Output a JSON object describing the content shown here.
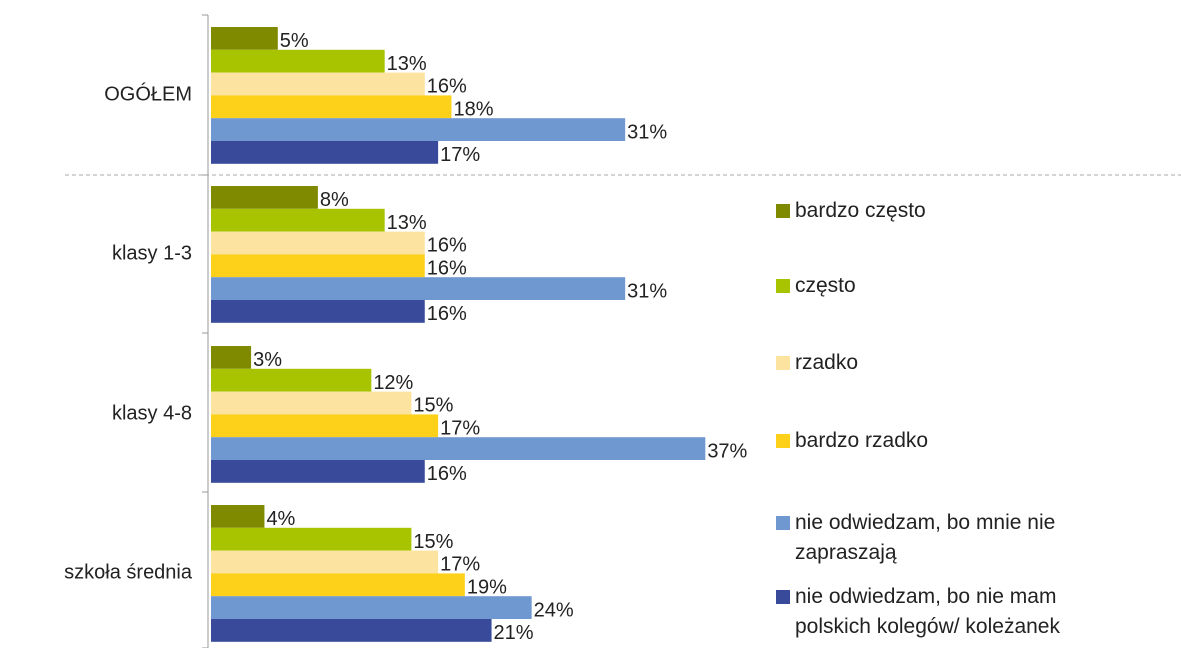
{
  "chart_data": {
    "type": "bar",
    "orientation": "horizontal",
    "categories": [
      "OGÓŁEM",
      "klasy 1-3",
      "klasy 4-8",
      "szkoła średnia"
    ],
    "series": [
      {
        "name": "bardzo często",
        "color": "#7f8a00",
        "values": [
          5,
          8,
          3,
          4
        ],
        "value_labels": [
          "5%",
          "8%",
          "3%",
          "4%"
        ]
      },
      {
        "name": "często",
        "color": "#a8c400",
        "values": [
          13,
          13,
          12,
          15
        ],
        "value_labels": [
          "13%",
          "13%",
          "12%",
          "15%"
        ]
      },
      {
        "name": "rzadko",
        "color": "#fde3a0",
        "values": [
          16,
          16,
          15,
          17
        ],
        "value_labels": [
          "16%",
          "16%",
          "15%",
          "17%"
        ]
      },
      {
        "name": "bardzo rzadko",
        "color": "#fdd01a",
        "values": [
          18,
          16,
          17,
          19
        ],
        "value_labels": [
          "18%",
          "16%",
          "17%",
          "19%"
        ]
      },
      {
        "name": "nie odwiedzam, bo mnie nie zapraszają",
        "color": "#6f97d0",
        "values": [
          31,
          31,
          37,
          24
        ],
        "value_labels": [
          "31%",
          "31%",
          "37%",
          "24%"
        ]
      },
      {
        "name": "nie odwiedzam, bo nie mam polskich kolegów/ koleżanek",
        "color": "#384a99",
        "values": [
          17,
          16,
          16,
          21
        ],
        "value_labels": [
          "17%",
          "16%",
          "16%",
          "21%"
        ]
      }
    ]
  }
}
